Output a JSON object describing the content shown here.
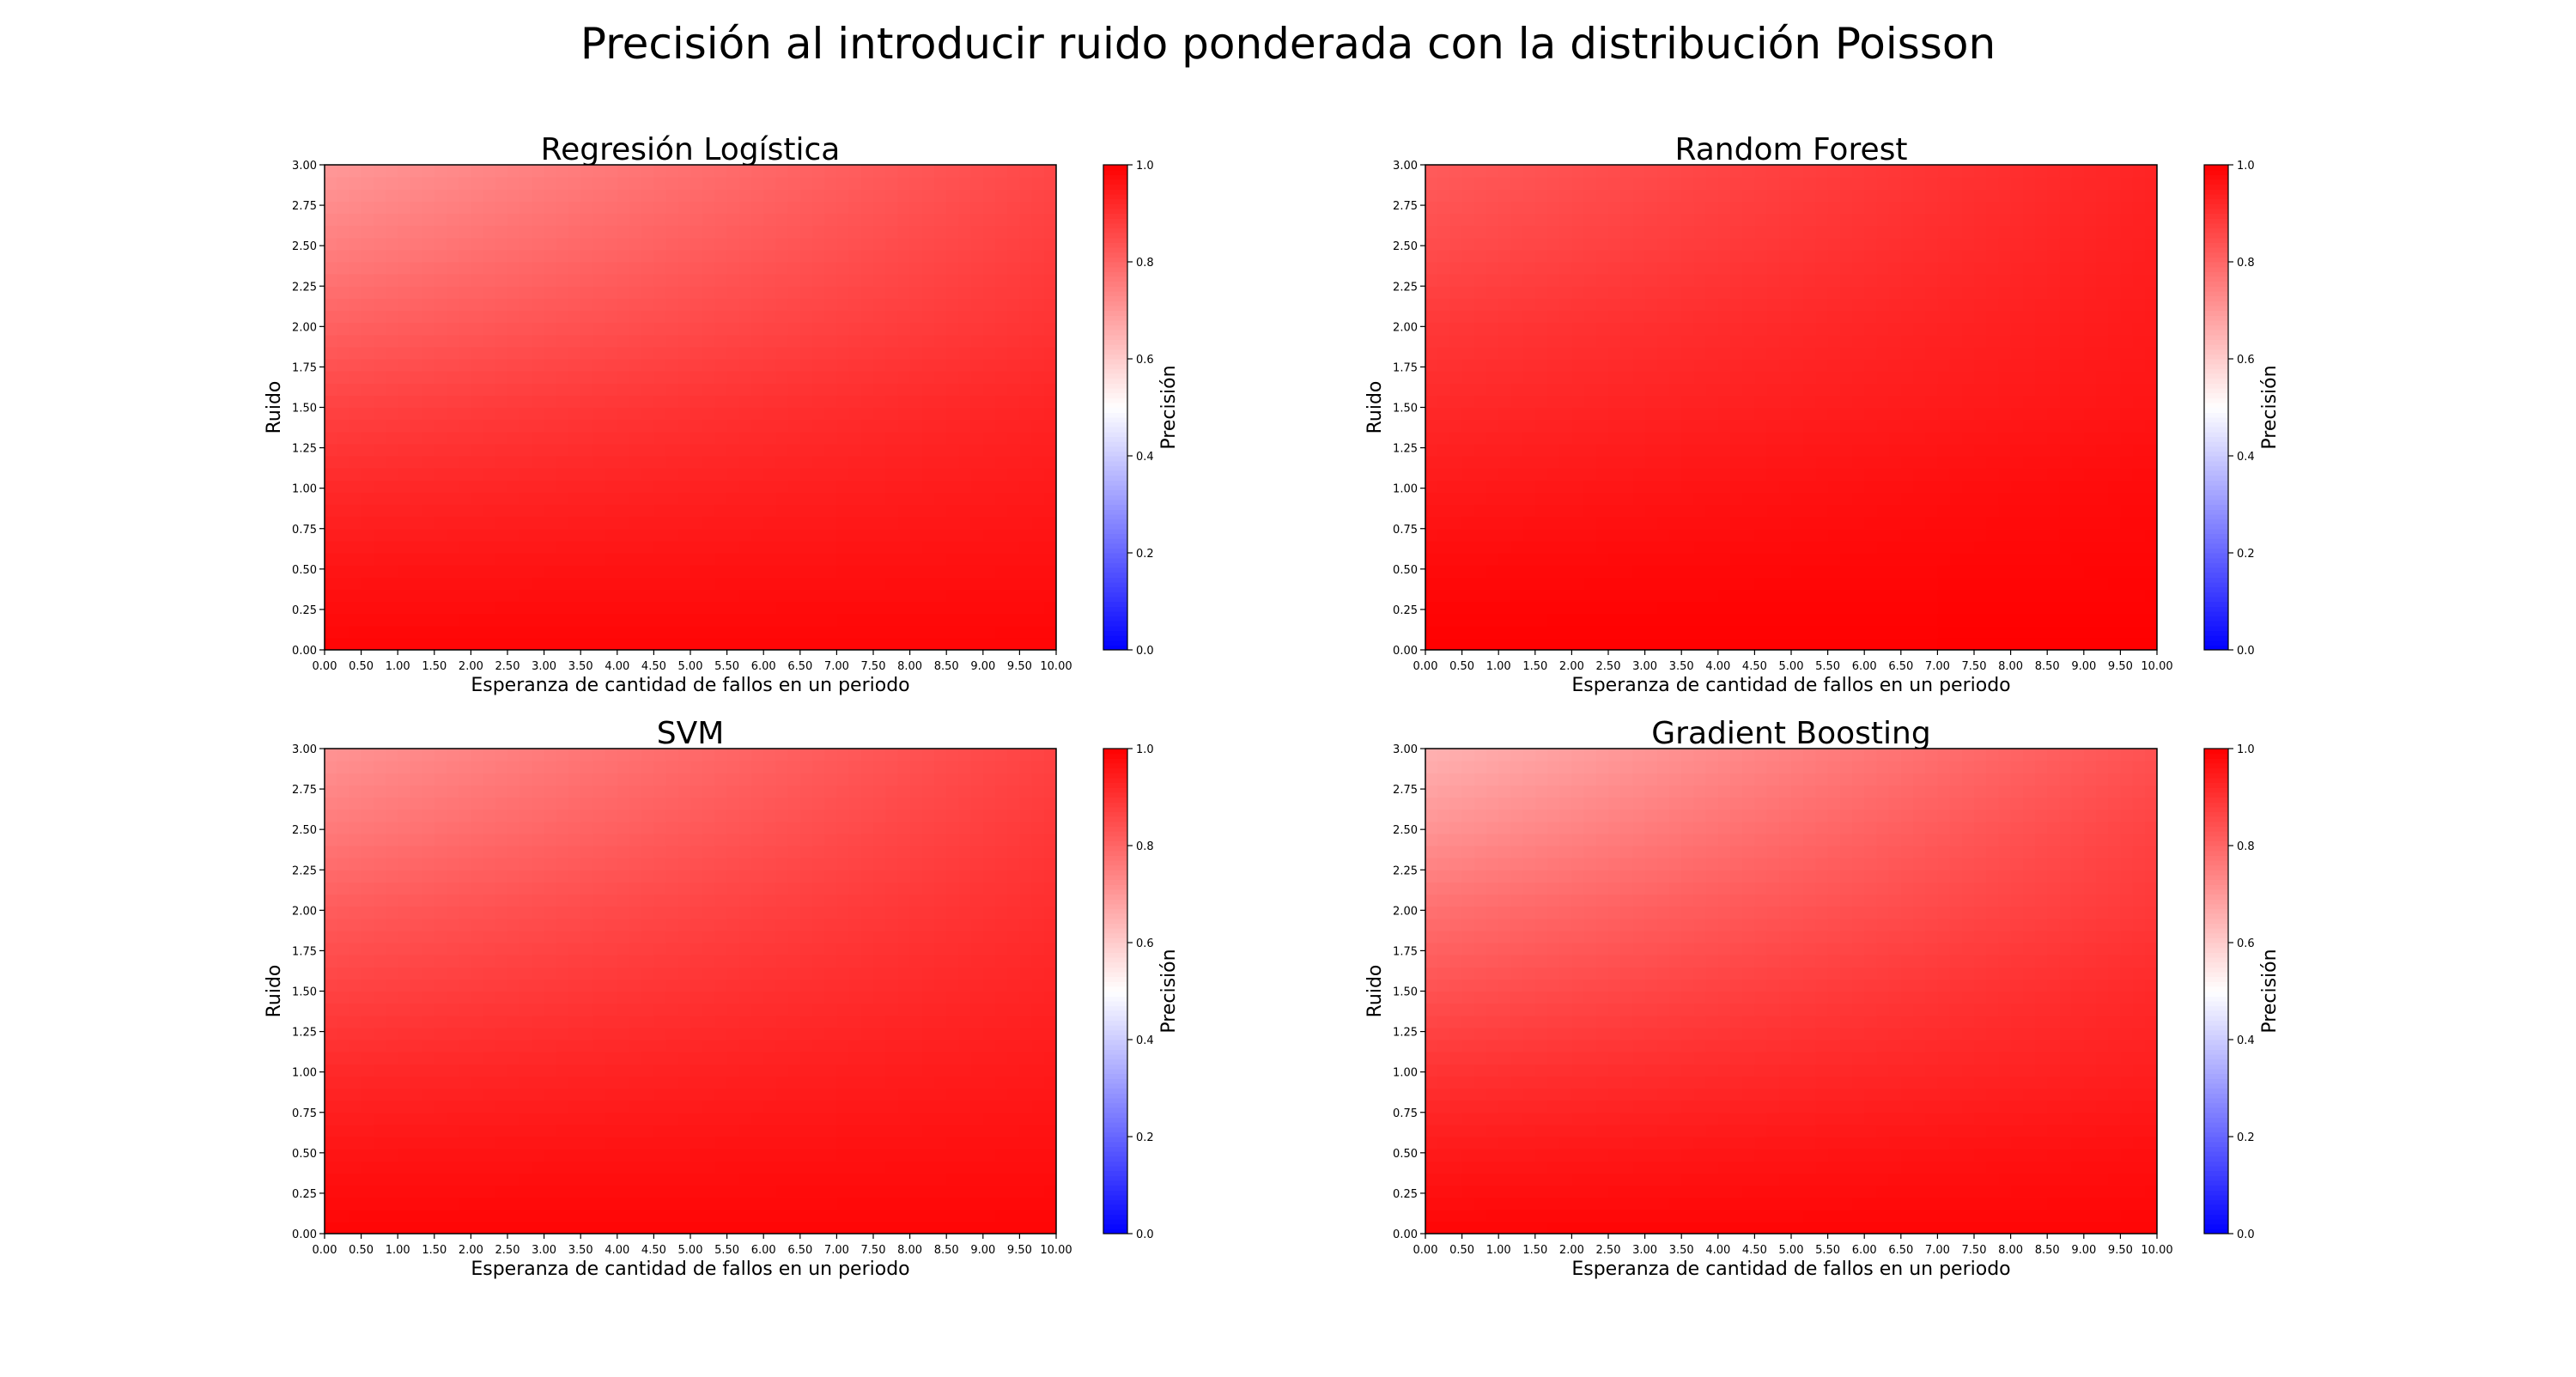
{
  "figure": {
    "suptitle": "Precisión al introducir ruido ponderada con la distribución Poisson"
  },
  "chart_data": [
    {
      "type": "heatmap",
      "title": "Regresión Logística",
      "xlabel": "Esperanza de cantidad de fallos en un periodo",
      "ylabel": "Ruido",
      "colorbar_label": "Precisión",
      "xlim": [
        0,
        10
      ],
      "ylim": [
        0,
        3
      ],
      "x_ticks": [
        "0.00",
        "0.50",
        "1.00",
        "1.50",
        "2.00",
        "2.50",
        "3.00",
        "3.50",
        "4.00",
        "4.50",
        "5.00",
        "5.50",
        "6.00",
        "6.50",
        "7.00",
        "7.50",
        "8.00",
        "8.50",
        "9.00",
        "9.50",
        "10.00"
      ],
      "y_ticks": [
        "0.00",
        "0.25",
        "0.50",
        "0.75",
        "1.00",
        "1.25",
        "1.50",
        "1.75",
        "2.00",
        "2.25",
        "2.50",
        "2.75",
        "3.00"
      ],
      "colorbar_ticks": [
        "0.0",
        "0.2",
        "0.4",
        "0.6",
        "0.8",
        "1.0"
      ],
      "clim": [
        0,
        1
      ],
      "colormap": [
        "#0000ff",
        "#ffffff",
        "#ff0000"
      ],
      "precision_by_noise": {
        "noise": [
          0,
          0.5,
          1,
          1.5,
          2,
          2.5,
          3
        ],
        "at_mean_faults_0": [
          0.99,
          0.96,
          0.92,
          0.87,
          0.81,
          0.75,
          0.7
        ],
        "at_mean_faults_10": [
          0.99,
          0.97,
          0.95,
          0.93,
          0.9,
          0.88,
          0.86
        ]
      }
    },
    {
      "type": "heatmap",
      "title": "Random Forest",
      "xlabel": "Esperanza de cantidad de fallos en un periodo",
      "ylabel": "Ruido",
      "colorbar_label": "Precisión",
      "xlim": [
        0,
        10
      ],
      "ylim": [
        0,
        3
      ],
      "x_ticks": [
        "0.00",
        "0.50",
        "1.00",
        "1.50",
        "2.00",
        "2.50",
        "3.00",
        "3.50",
        "4.00",
        "4.50",
        "5.00",
        "5.50",
        "6.00",
        "6.50",
        "7.00",
        "7.50",
        "8.00",
        "8.50",
        "9.00",
        "9.50",
        "10.00"
      ],
      "y_ticks": [
        "0.00",
        "0.25",
        "0.50",
        "0.75",
        "1.00",
        "1.25",
        "1.50",
        "1.75",
        "2.00",
        "2.25",
        "2.50",
        "2.75",
        "3.00"
      ],
      "colorbar_ticks": [
        "0.0",
        "0.2",
        "0.4",
        "0.6",
        "0.8",
        "1.0"
      ],
      "clim": [
        0,
        1
      ],
      "colormap": [
        "#0000ff",
        "#ffffff",
        "#ff0000"
      ],
      "precision_by_noise": {
        "noise": [
          0,
          0.5,
          1,
          1.5,
          2,
          2.5,
          3
        ],
        "at_mean_faults_0": [
          1.0,
          0.98,
          0.95,
          0.92,
          0.89,
          0.85,
          0.82
        ],
        "at_mean_faults_10": [
          1.0,
          0.99,
          0.98,
          0.96,
          0.95,
          0.94,
          0.93
        ]
      }
    },
    {
      "type": "heatmap",
      "title": "SVM",
      "xlabel": "Esperanza de cantidad de fallos en un periodo",
      "ylabel": "Ruido",
      "colorbar_label": "Precisión",
      "xlim": [
        0,
        10
      ],
      "ylim": [
        0,
        3
      ],
      "x_ticks": [
        "0.00",
        "0.50",
        "1.00",
        "1.50",
        "2.00",
        "2.50",
        "3.00",
        "3.50",
        "4.00",
        "4.50",
        "5.00",
        "5.50",
        "6.00",
        "6.50",
        "7.00",
        "7.50",
        "8.00",
        "8.50",
        "9.00",
        "9.50",
        "10.00"
      ],
      "y_ticks": [
        "0.00",
        "0.25",
        "0.50",
        "0.75",
        "1.00",
        "1.25",
        "1.50",
        "1.75",
        "2.00",
        "2.25",
        "2.50",
        "2.75",
        "3.00"
      ],
      "colorbar_ticks": [
        "0.0",
        "0.2",
        "0.4",
        "0.6",
        "0.8",
        "1.0"
      ],
      "clim": [
        0,
        1
      ],
      "colormap": [
        "#0000ff",
        "#ffffff",
        "#ff0000"
      ],
      "precision_by_noise": {
        "noise": [
          0,
          0.5,
          1,
          1.5,
          2,
          2.5,
          3
        ],
        "at_mean_faults_0": [
          0.99,
          0.96,
          0.92,
          0.87,
          0.82,
          0.76,
          0.71
        ],
        "at_mean_faults_10": [
          0.99,
          0.97,
          0.95,
          0.93,
          0.91,
          0.89,
          0.87
        ]
      }
    },
    {
      "type": "heatmap",
      "title": "Gradient Boosting",
      "xlabel": "Esperanza de cantidad de fallos en un periodo",
      "ylabel": "Ruido",
      "colorbar_label": "Precisión",
      "xlim": [
        0,
        10
      ],
      "ylim": [
        0,
        3
      ],
      "x_ticks": [
        "0.00",
        "0.50",
        "1.00",
        "1.50",
        "2.00",
        "2.50",
        "3.00",
        "3.50",
        "4.00",
        "4.50",
        "5.00",
        "5.50",
        "6.00",
        "6.50",
        "7.00",
        "7.50",
        "8.00",
        "8.50",
        "9.00",
        "9.50",
        "10.00"
      ],
      "y_ticks": [
        "0.00",
        "0.25",
        "0.50",
        "0.75",
        "1.00",
        "1.25",
        "1.50",
        "1.75",
        "2.00",
        "2.25",
        "2.50",
        "2.75",
        "3.00"
      ],
      "colorbar_ticks": [
        "0.0",
        "0.2",
        "0.4",
        "0.6",
        "0.8",
        "1.0"
      ],
      "clim": [
        0,
        1
      ],
      "colormap": [
        "#0000ff",
        "#ffffff",
        "#ff0000"
      ],
      "precision_by_noise": {
        "noise": [
          0,
          0.5,
          1,
          1.5,
          2,
          2.5,
          3
        ],
        "at_mean_faults_0": [
          0.99,
          0.95,
          0.9,
          0.84,
          0.78,
          0.71,
          0.65
        ],
        "at_mean_faults_10": [
          0.99,
          0.97,
          0.94,
          0.92,
          0.89,
          0.87,
          0.84
        ]
      }
    }
  ]
}
